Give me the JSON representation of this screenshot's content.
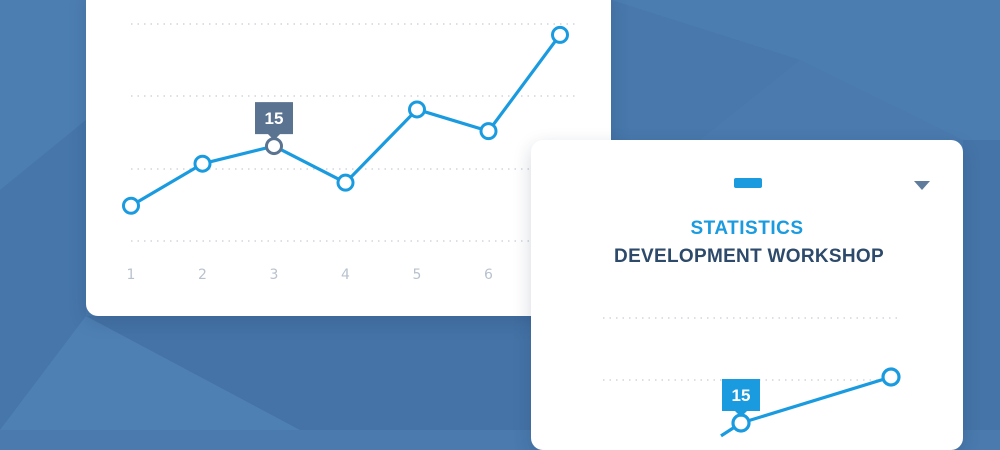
{
  "colors": {
    "background": "#4a7aae",
    "accent": "#1a9be0",
    "highlight_point": "#5a7390",
    "title_dark": "#2d4a6b",
    "grid": "#c5ccd6",
    "axis_label": "#b8c2ce"
  },
  "main_card": {
    "chart_data": {
      "type": "line",
      "x": [
        1,
        2,
        3,
        4,
        5,
        6,
        7
      ],
      "x_tick_labels": [
        "1",
        "2",
        "3",
        "4",
        "5",
        "6"
      ],
      "series": [
        {
          "values": [
            10.6,
            13.7,
            15,
            12.3,
            17.7,
            16.1,
            23.2
          ]
        }
      ],
      "highlight": {
        "index": 2,
        "label": "15"
      },
      "ylim": [
        8,
        24
      ],
      "grid": "horizontal-dotted",
      "title": "",
      "xlabel": "",
      "ylabel": ""
    }
  },
  "secondary_card": {
    "title_line1": "STATISTICS",
    "title_line2": "DEVELOPMENT WORKSHOP",
    "menu_icon": "dash-icon",
    "dropdown_icon": "caret-down-icon",
    "chart_data": {
      "type": "line",
      "series": [
        {
          "values": [
            13.6,
            15,
            20
          ]
        }
      ],
      "highlight": {
        "index": 1,
        "label": "15"
      },
      "grid": "horizontal-dotted",
      "title": "",
      "xlabel": "",
      "ylabel": ""
    }
  }
}
